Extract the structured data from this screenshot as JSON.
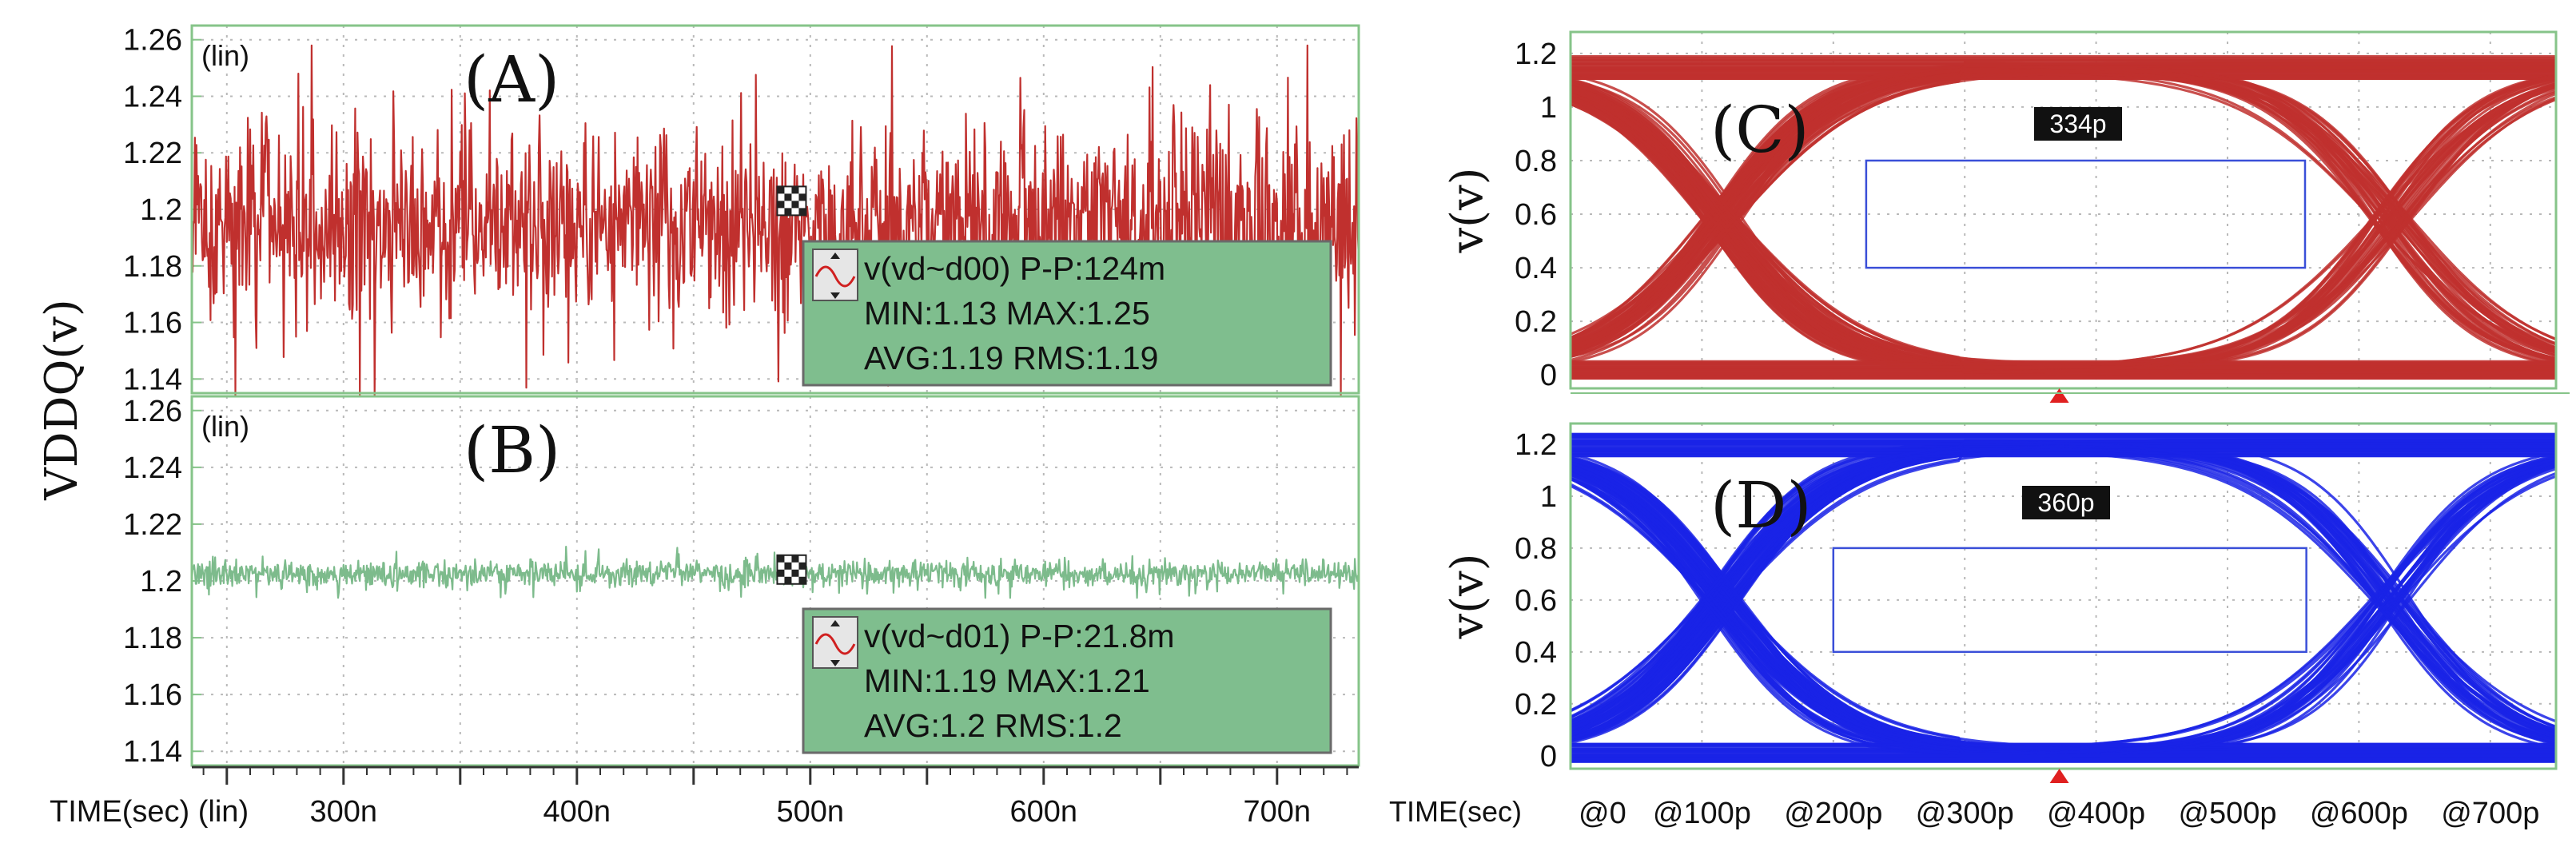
{
  "colors": {
    "frame": "#86c489",
    "trace_a": "#c0302e",
    "trace_b": "#7dbb8c",
    "eye_c": "#c0302e",
    "eye_d": "#1a23e6",
    "tooltip_bg": "#7fbe8e",
    "mask": "#3a4fd8",
    "marker": "#e02020"
  },
  "chart_data": [
    {
      "type": "line",
      "id": "A",
      "panel_label": "(A)",
      "scale_tag": "(lin)",
      "ylabel": "VDDQ(v)",
      "xlabel": "TIME(sec) (lin)",
      "xlim": [
        235,
        735
      ],
      "ylim": [
        1.135,
        1.265
      ],
      "x_ticks": [
        300,
        400,
        500,
        600,
        700
      ],
      "x_tick_labels": [
        "300n",
        "400n",
        "500n",
        "600n",
        "700n"
      ],
      "y_ticks": [
        1.14,
        1.16,
        1.18,
        1.2,
        1.22,
        1.24,
        1.26
      ],
      "y_tick_labels": [
        "1.14",
        "1.16",
        "1.18",
        "1.2",
        "1.22",
        "1.24",
        "1.26"
      ],
      "series": [
        {
          "name": "v(vd~d00)",
          "mean": 1.195,
          "min": 1.13,
          "max": 1.25,
          "pp": 0.124
        }
      ],
      "tooltip": {
        "line1": "v(vd~d00) P-P:124m",
        "line2": "MIN:1.13 MAX:1.25",
        "line3": "AVG:1.19 RMS:1.19"
      },
      "cursor_x": 492,
      "cursor_y": 1.203
    },
    {
      "type": "line",
      "id": "B",
      "panel_label": "(B)",
      "scale_tag": "(lin)",
      "xlim": [
        235,
        735
      ],
      "ylim": [
        1.135,
        1.265
      ],
      "y_ticks": [
        1.14,
        1.16,
        1.18,
        1.2,
        1.22,
        1.24,
        1.26
      ],
      "y_tick_labels": [
        "1.14",
        "1.16",
        "1.18",
        "1.2",
        "1.22",
        "1.24",
        "1.26"
      ],
      "series": [
        {
          "name": "v(vd~d01)",
          "mean": 1.2025,
          "min": 1.19,
          "max": 1.21,
          "pp": 0.0218
        }
      ],
      "tooltip": {
        "line1": "v(vd~d01) P-P:21.8m",
        "line2": "MIN:1.19 MAX:1.21",
        "line3": "AVG:1.2 RMS:1.2"
      },
      "cursor_x": 492,
      "cursor_y": 1.204
    },
    {
      "type": "eye",
      "id": "C",
      "panel_label": "(C)",
      "ylabel": "v(v)",
      "xlim": [
        0,
        750
      ],
      "ylim": [
        -0.05,
        1.28
      ],
      "y_ticks": [
        0,
        0.2,
        0.4,
        0.6,
        0.8,
        1,
        1.2
      ],
      "y_tick_labels": [
        "0",
        "0.2",
        "0.4",
        "0.6",
        "0.8",
        "1",
        "1.2"
      ],
      "high": 1.15,
      "low": 0.02,
      "crossings": [
        115,
        625
      ],
      "eye_width_label": "334p",
      "mask": {
        "x0": 225,
        "x1": 559,
        "y0": 0.4,
        "y1": 0.8
      },
      "marker_x": 372
    },
    {
      "type": "eye",
      "id": "D",
      "panel_label": "(D)",
      "ylabel": "v(v)",
      "xlabel": "TIME(sec)",
      "xlim": [
        0,
        750
      ],
      "ylim": [
        -0.05,
        1.28
      ],
      "x_ticks": [
        0,
        100,
        200,
        300,
        400,
        500,
        600,
        700
      ],
      "x_tick_labels": [
        "@0",
        "@100p",
        "@200p",
        "@300p",
        "@400p",
        "@500p",
        "@600p",
        "@700p"
      ],
      "y_ticks": [
        0,
        0.2,
        0.4,
        0.6,
        0.8,
        1,
        1.2
      ],
      "y_tick_labels": [
        "0",
        "0.2",
        "0.4",
        "0.6",
        "0.8",
        "1",
        "1.2"
      ],
      "high": 1.2,
      "low": 0.01,
      "crossings": [
        115,
        625
      ],
      "eye_width_label": "360p",
      "mask": {
        "x0": 200,
        "x1": 560,
        "y0": 0.4,
        "y1": 0.8
      },
      "marker_x": 372
    }
  ]
}
